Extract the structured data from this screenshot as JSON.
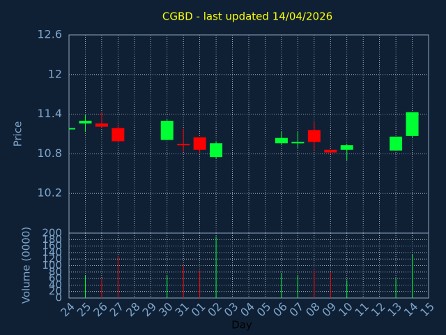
{
  "chart_data": {
    "type": "candlestick",
    "title": "CGBD - last updated 14/04/2026",
    "ylabel": "Price",
    "volume_label": "Volume (0000)",
    "xlabel": "Day",
    "categories": [
      "24",
      "25",
      "26",
      "27",
      "28",
      "29",
      "30",
      "31",
      "01",
      "02",
      "03",
      "04",
      "05",
      "06",
      "07",
      "08",
      "09",
      "10",
      "11",
      "12",
      "13",
      "14",
      "15"
    ],
    "open": [
      11.19,
      11.26,
      11.26,
      11.19,
      null,
      null,
      11.01,
      10.95,
      11.05,
      10.75,
      null,
      null,
      null,
      10.96,
      10.96,
      11.16,
      10.86,
      10.86,
      null,
      null,
      10.85,
      11.07,
      null
    ],
    "high": [
      11.19,
      11.39,
      11.44,
      11.24,
      null,
      null,
      11.32,
      11.18,
      11.05,
      10.99,
      null,
      null,
      null,
      11.14,
      11.13,
      11.28,
      10.86,
      10.95,
      null,
      null,
      11.06,
      11.43,
      null
    ],
    "low": [
      11.19,
      11.13,
      11.2,
      10.99,
      null,
      null,
      11.01,
      10.83,
      10.81,
      10.73,
      null,
      null,
      null,
      10.93,
      10.89,
      10.85,
      10.8,
      10.7,
      null,
      null,
      10.85,
      11.05,
      null
    ],
    "close": [
      11.19,
      11.3,
      11.21,
      10.99,
      null,
      null,
      11.3,
      10.94,
      10.86,
      10.96,
      null,
      null,
      null,
      11.04,
      10.98,
      10.98,
      10.82,
      10.93,
      null,
      null,
      11.06,
      11.43,
      null
    ],
    "volume": [
      null,
      70,
      60,
      130,
      null,
      null,
      70,
      100,
      85,
      190,
      null,
      null,
      null,
      75,
      70,
      85,
      80,
      55,
      null,
      null,
      60,
      135,
      null
    ],
    "up_color": "#00ff33",
    "down_color": "#ff0000",
    "ylim": [
      9.6,
      12.6
    ],
    "yticks": [
      10.2,
      10.8,
      11.4,
      12,
      12.6
    ],
    "volume_lim": [
      0,
      200
    ],
    "volume_ticks": [
      0,
      20,
      40,
      60,
      80,
      100,
      120,
      140,
      160,
      180,
      200
    ],
    "grid": true
  }
}
